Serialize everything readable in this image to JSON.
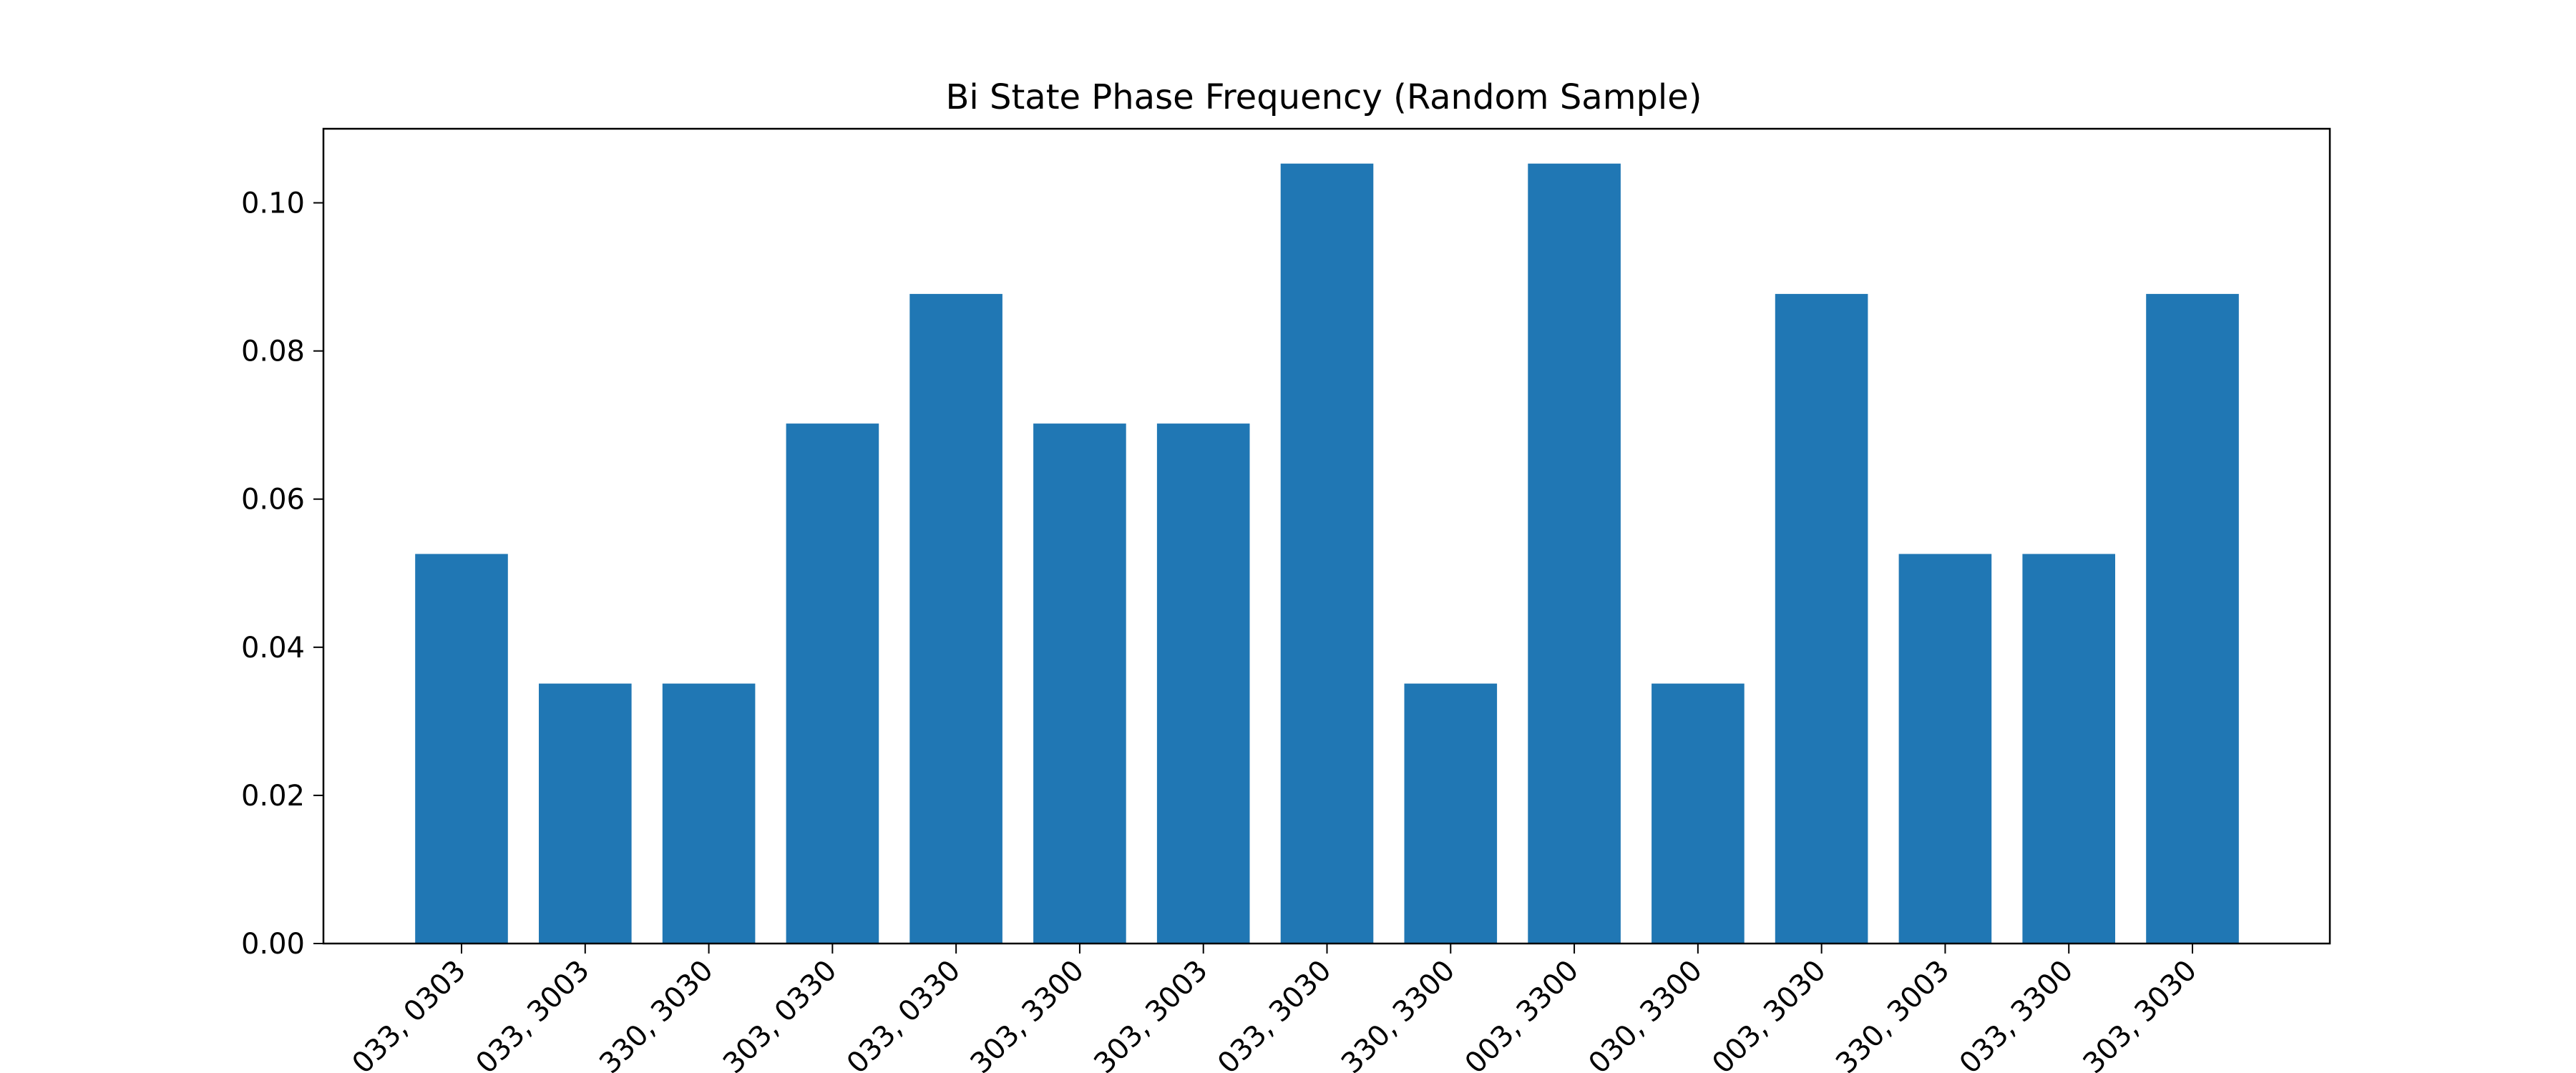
{
  "chart_data": {
    "type": "bar",
    "title": "Bi State Phase Frequency (Random Sample)",
    "xlabel": "",
    "ylabel": "",
    "ylim": [
      0,
      0.11
    ],
    "yticks": [
      0.0,
      0.02,
      0.04,
      0.06,
      0.08,
      0.1
    ],
    "ytick_labels": [
      "0.00",
      "0.02",
      "0.04",
      "0.06",
      "0.08",
      "0.10"
    ],
    "grid": false,
    "bar_color": "#2077b4",
    "categories": [
      "033, 0303",
      "033, 3003",
      "330, 3030",
      "303, 0330",
      "033, 0330",
      "303, 3300",
      "303, 3003",
      "033, 3030",
      "330, 3300",
      "003, 3300",
      "030, 3300",
      "003, 3030",
      "330, 3003",
      "033, 3300",
      "303, 3030"
    ],
    "values": [
      0.0526,
      0.0351,
      0.0351,
      0.0702,
      0.0877,
      0.0702,
      0.0702,
      0.1053,
      0.0351,
      0.1053,
      0.0351,
      0.0877,
      0.0526,
      0.0526,
      0.0877
    ]
  }
}
